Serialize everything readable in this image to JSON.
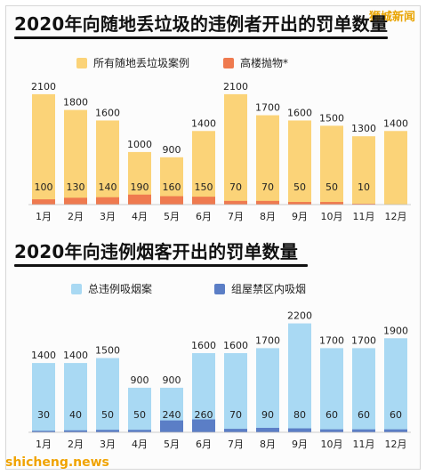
{
  "watermark_top": "狮城新闻",
  "watermark_bottom": "shicheng.news",
  "colors": {
    "litter_main": "#fbd378",
    "litter_highrise": "#ef7a4f",
    "smoke_main": "#a9d9f3",
    "smoke_hdb": "#5b7ec6"
  },
  "chart_data": [
    {
      "type": "bar",
      "title": "2020年向随地丢垃圾的违例者开出的罚单数量",
      "categories": [
        "1月",
        "2月",
        "3月",
        "4月",
        "5月",
        "6月",
        "7月",
        "8月",
        "9月",
        "10月",
        "11月",
        "12月"
      ],
      "series": [
        {
          "name": "所有随地丢垃圾案例",
          "values": [
            2100,
            1800,
            1600,
            1000,
            900,
            1400,
            2100,
            1700,
            1600,
            1500,
            1300,
            1400
          ]
        },
        {
          "name": "高楼抛物*",
          "values": [
            100,
            130,
            140,
            190,
            160,
            150,
            70,
            70,
            50,
            50,
            10,
            null
          ]
        }
      ],
      "ylim": [
        0,
        2200
      ],
      "legend": "top"
    },
    {
      "type": "bar",
      "title": "2020年向违例烟客开出的罚单数量",
      "categories": [
        "1月",
        "2月",
        "3月",
        "4月",
        "5月",
        "6月",
        "7月",
        "8月",
        "9月",
        "10月",
        "11月",
        "12月"
      ],
      "series": [
        {
          "name": "总违例吸烟案",
          "values": [
            1400,
            1400,
            1500,
            900,
            900,
            1600,
            1600,
            1700,
            2200,
            1700,
            1700,
            1900
          ]
        },
        {
          "name": "组屋禁区内吸烟",
          "values": [
            30,
            40,
            50,
            50,
            240,
            260,
            70,
            90,
            80,
            60,
            60,
            60
          ]
        }
      ],
      "ylim": [
        0,
        2300
      ],
      "legend": "top"
    }
  ]
}
